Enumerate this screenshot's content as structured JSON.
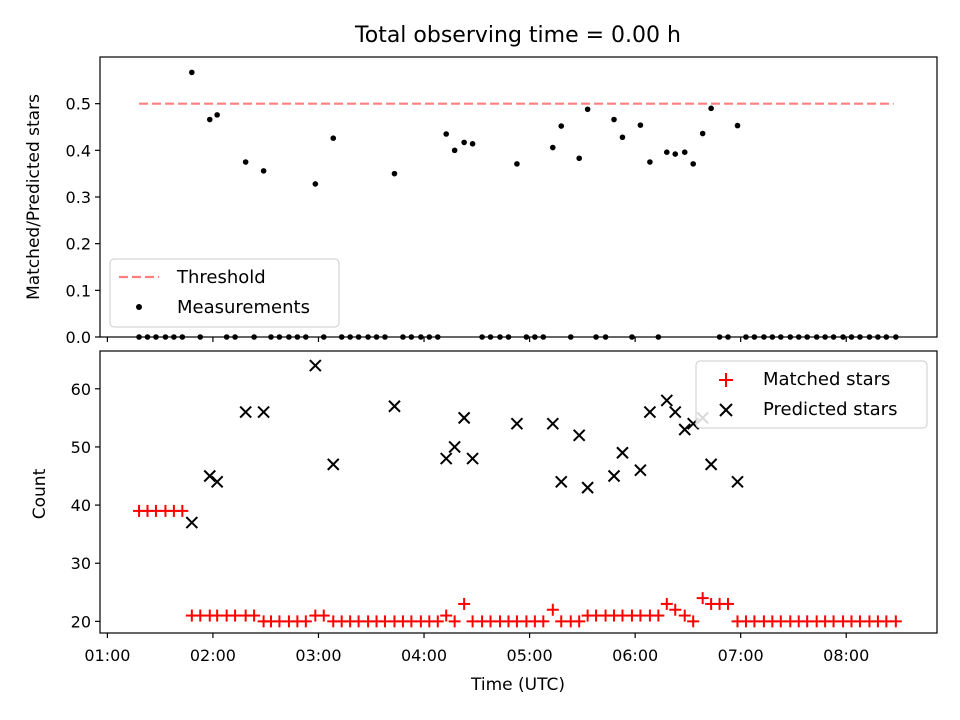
{
  "figure_title": "Total observing time = 0.00 h",
  "chart_data": [
    {
      "type": "scatter",
      "panel": "top",
      "ylabel": "Matched/Predicted stars",
      "ylim": [
        0,
        0.6
      ],
      "yticks": [
        "0.0",
        "0.1",
        "0.2",
        "0.3",
        "0.4",
        "0.5"
      ],
      "xlim_hours": [
        0.93,
        8.86
      ],
      "grid": false,
      "legend_position": "lower-left",
      "series": [
        {
          "name": "Threshold",
          "kind": "dashed-line",
          "color": "#ff7f7f",
          "x": [
            1.3,
            8.45
          ],
          "y": [
            0.5,
            0.5
          ]
        },
        {
          "name": "Measurements",
          "kind": "points",
          "color": "#000000",
          "x": [
            1.8,
            1.97,
            2.04,
            2.31,
            2.48,
            2.97,
            3.14,
            3.72,
            4.21,
            4.29,
            4.38,
            4.46,
            4.88,
            5.22,
            5.3,
            5.47,
            5.55,
            5.8,
            5.88,
            6.05,
            6.14,
            6.3,
            6.38,
            6.47,
            6.55,
            6.64,
            6.72,
            6.97
          ],
          "y": [
            0.567,
            0.466,
            0.476,
            0.375,
            0.356,
            0.328,
            0.426,
            0.35,
            0.435,
            0.4,
            0.417,
            0.414,
            0.371,
            0.406,
            0.452,
            0.383,
            0.488,
            0.466,
            0.428,
            0.454,
            0.375,
            0.396,
            0.392,
            0.396,
            0.371,
            0.436,
            0.49,
            0.453
          ]
        },
        {
          "name": "",
          "kind": "points",
          "color": "#000000",
          "x": [
            1.3,
            1.38,
            1.46,
            1.55,
            1.63,
            1.71,
            1.88,
            2.13,
            2.21,
            2.39,
            2.55,
            2.63,
            2.72,
            2.8,
            2.88,
            3.05,
            3.22,
            3.3,
            3.38,
            3.47,
            3.55,
            3.63,
            3.8,
            3.88,
            3.97,
            4.05,
            4.13,
            4.55,
            4.63,
            4.72,
            4.8,
            4.97,
            5.05,
            5.13,
            5.39,
            5.63,
            5.72,
            5.97,
            6.22,
            6.8,
            6.88,
            7.05,
            7.13,
            7.22,
            7.3,
            7.38,
            7.47,
            7.55,
            7.63,
            7.72,
            7.8,
            7.88,
            7.97,
            8.05,
            8.13,
            8.22,
            8.3,
            8.38,
            8.47
          ],
          "y": [
            0,
            0,
            0,
            0,
            0,
            0,
            0,
            0,
            0,
            0,
            0,
            0,
            0,
            0,
            0,
            0,
            0,
            0,
            0,
            0,
            0,
            0,
            0,
            0,
            0,
            0,
            0,
            0,
            0,
            0,
            0,
            0,
            0,
            0,
            0,
            0,
            0,
            0,
            0,
            0,
            0,
            0,
            0,
            0,
            0,
            0,
            0,
            0,
            0,
            0,
            0,
            0,
            0,
            0,
            0,
            0,
            0,
            0,
            0
          ]
        }
      ]
    },
    {
      "type": "scatter",
      "panel": "bottom",
      "xlabel": "Time (UTC)",
      "ylabel": "Count",
      "ylim": [
        18,
        66.5
      ],
      "yticks": [
        "20",
        "30",
        "40",
        "50",
        "60"
      ],
      "xlim_hours": [
        0.93,
        8.86
      ],
      "xticks": [
        "01:00",
        "02:00",
        "03:00",
        "04:00",
        "05:00",
        "06:00",
        "07:00",
        "08:00"
      ],
      "grid": false,
      "legend_position": "upper-right",
      "series": [
        {
          "name": "Matched stars",
          "marker": "+",
          "color": "#ff0000",
          "x": [
            1.3,
            1.38,
            1.46,
            1.55,
            1.63,
            1.71,
            1.8,
            1.88,
            1.97,
            2.04,
            2.13,
            2.21,
            2.31,
            2.39,
            2.48,
            2.55,
            2.63,
            2.72,
            2.8,
            2.88,
            2.97,
            3.05,
            3.14,
            3.22,
            3.3,
            3.38,
            3.47,
            3.55,
            3.63,
            3.72,
            3.8,
            3.88,
            3.97,
            4.05,
            4.13,
            4.21,
            4.29,
            4.38,
            4.46,
            4.55,
            4.63,
            4.72,
            4.8,
            4.88,
            4.97,
            5.05,
            5.13,
            5.22,
            5.3,
            5.39,
            5.47,
            5.55,
            5.63,
            5.72,
            5.8,
            5.88,
            5.97,
            6.05,
            6.14,
            6.22,
            6.3,
            6.38,
            6.47,
            6.55,
            6.64,
            6.72,
            6.8,
            6.88,
            6.97,
            7.05,
            7.13,
            7.22,
            7.3,
            7.38,
            7.47,
            7.55,
            7.63,
            7.72,
            7.8,
            7.88,
            7.97,
            8.05,
            8.13,
            8.22,
            8.3,
            8.38,
            8.47
          ],
          "y": [
            39,
            39,
            39,
            39,
            39,
            39,
            21,
            21,
            21,
            21,
            21,
            21,
            21,
            21,
            20,
            20,
            20,
            20,
            20,
            20,
            21,
            21,
            20,
            20,
            20,
            20,
            20,
            20,
            20,
            20,
            20,
            20,
            20,
            20,
            20,
            21,
            20,
            23,
            20,
            20,
            20,
            20,
            20,
            20,
            20,
            20,
            20,
            22,
            20,
            20,
            20,
            21,
            21,
            21,
            21,
            21,
            21,
            21,
            21,
            21,
            23,
            22,
            21,
            20,
            24,
            23,
            23,
            23,
            20,
            20,
            20,
            20,
            20,
            20,
            20,
            20,
            20,
            20,
            20,
            20,
            20,
            20,
            20,
            20,
            20,
            20,
            20
          ]
        },
        {
          "name": "Predicted stars",
          "marker": "x",
          "color": "#000000",
          "x": [
            1.8,
            1.97,
            2.04,
            2.31,
            2.48,
            2.97,
            3.14,
            3.72,
            4.21,
            4.29,
            4.38,
            4.46,
            4.88,
            5.22,
            5.3,
            5.47,
            5.55,
            5.8,
            5.88,
            6.05,
            6.14,
            6.3,
            6.38,
            6.47,
            6.55,
            6.64,
            6.72,
            6.97
          ],
          "y": [
            37,
            45,
            44,
            56,
            56,
            64,
            47,
            57,
            48,
            50,
            55,
            48,
            54,
            54,
            44,
            52,
            43,
            45,
            49,
            46,
            56,
            58,
            56,
            53,
            54,
            55,
            47,
            44
          ]
        }
      ]
    }
  ]
}
